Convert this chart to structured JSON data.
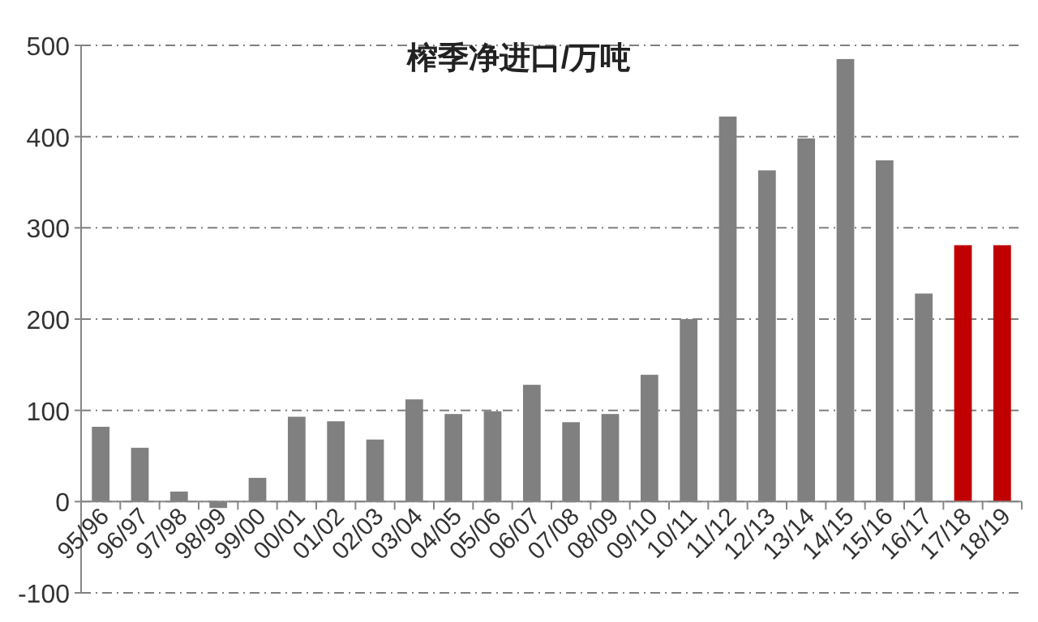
{
  "chart_data": {
    "type": "bar",
    "title": "榨季净进口/万吨",
    "categories": [
      "95/96",
      "96/97",
      "97/98",
      "98/99",
      "99/00",
      "00/01",
      "01/02",
      "02/03",
      "03/04",
      "04/05",
      "05/06",
      "06/07",
      "07/08",
      "08/09",
      "09/10",
      "10/11",
      "11/12",
      "12/13",
      "13/14",
      "14/15",
      "15/16",
      "16/17",
      "17/18",
      "18/19"
    ],
    "values": [
      82,
      59,
      11,
      -7,
      26,
      93,
      88,
      68,
      112,
      96,
      99,
      128,
      87,
      96,
      139,
      200,
      422,
      363,
      398,
      485,
      374,
      228,
      281,
      281
    ],
    "colors": [
      "#808080",
      "#808080",
      "#808080",
      "#808080",
      "#808080",
      "#808080",
      "#808080",
      "#808080",
      "#808080",
      "#808080",
      "#808080",
      "#808080",
      "#808080",
      "#808080",
      "#808080",
      "#808080",
      "#808080",
      "#808080",
      "#808080",
      "#808080",
      "#808080",
      "#808080",
      "#c00000",
      "#c00000"
    ],
    "ylim": [
      -100,
      500
    ],
    "yticks": [
      -100,
      0,
      100,
      200,
      300,
      400,
      500
    ],
    "grid": "y"
  }
}
